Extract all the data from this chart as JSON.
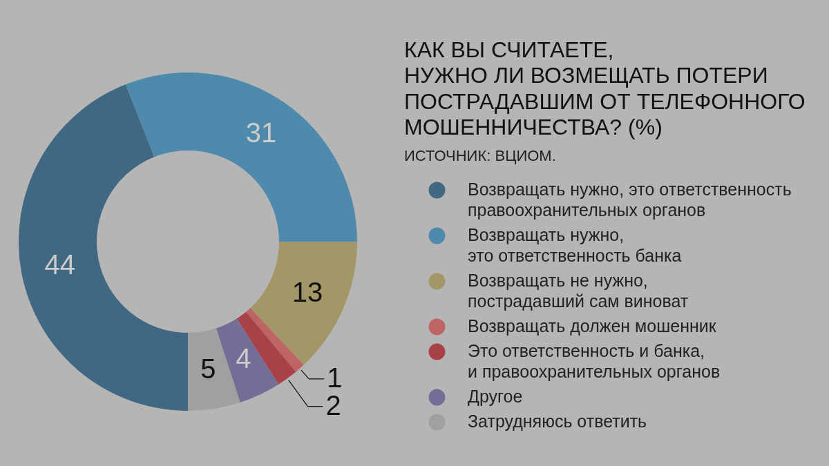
{
  "chart_data": {
    "type": "donut",
    "title": "КАК ВЫ СЧИТАЕТЕ,\nНУЖНО ЛИ ВОЗМЕЩАТЬ ПОТЕРИ\nПОСТРАДАВШИМ ОТ ТЕЛЕФОННОГО\nМОШЕННИЧЕСТВА? (%)",
    "annotations": [
      "ИСТОЧНИК: ВЦИОМ."
    ],
    "categories": [
      "Возвращать нужно, это ответственность\nправоохранительных органов",
      "Возвращать нужно,\nэто ответственность банка",
      "Возвращать не нужно,\nпострадавший сам виноват",
      "Возвращать должен мошенник",
      "Это ответственность и банка,\nи правоохранительных органов",
      "Другое",
      "Затрудняюсь ответить"
    ],
    "values": [
      44,
      31,
      13,
      1,
      2,
      4,
      5
    ],
    "colors": [
      "#416882",
      "#4d8aab",
      "#a49767",
      "#be6464",
      "#a84148",
      "#736e96",
      "#a0a0a0"
    ],
    "data_labels": true,
    "legend": "right"
  }
}
